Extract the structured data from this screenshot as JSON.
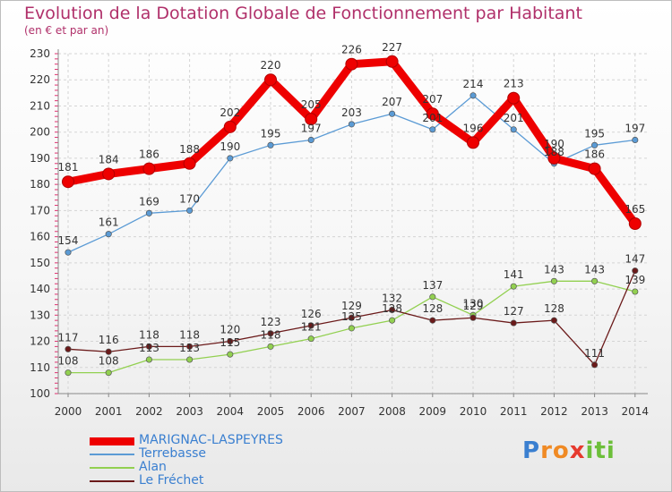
{
  "title": "Evolution de la Dotation Globale de Fonctionnement par Habitant",
  "subtitle": "(en € et par an)",
  "chart_data": {
    "type": "line",
    "title": "Evolution de la Dotation Globale de Fonctionnement par Habitant",
    "subtitle": "(en € et par an)",
    "x": [
      "2000",
      "2001",
      "2002",
      "2003",
      "2004",
      "2005",
      "2006",
      "2007",
      "2008",
      "2009",
      "2010",
      "2011",
      "2012",
      "2013",
      "2014"
    ],
    "ylim": [
      100,
      230
    ],
    "yticks": [
      "100",
      "110",
      "120",
      "130",
      "140",
      "150",
      "160",
      "170",
      "180",
      "190",
      "200",
      "210",
      "220",
      "230"
    ],
    "grid": true,
    "series": [
      {
        "name": "MARIGNAC-LASPEYRES",
        "color": "#ee0000",
        "values": [
          181,
          184,
          186,
          188,
          202,
          220,
          205,
          226,
          227,
          207,
          196,
          213,
          190,
          186,
          165
        ]
      },
      {
        "name": "Terrebasse",
        "color": "#5b9bd5",
        "values": [
          154,
          161,
          169,
          170,
          190,
          195,
          197,
          203,
          207,
          201,
          214,
          201,
          188,
          195,
          197
        ]
      },
      {
        "name": "Alan",
        "color": "#92d050",
        "values": [
          108,
          108,
          113,
          113,
          115,
          118,
          121,
          125,
          128,
          137,
          130,
          141,
          143,
          143,
          139
        ]
      },
      {
        "name": "Le Fréchet",
        "color": "#6b1a1a",
        "values": [
          117,
          116,
          118,
          118,
          120,
          123,
          126,
          129,
          132,
          128,
          129,
          127,
          128,
          111,
          147
        ]
      }
    ]
  },
  "logo": {
    "letters": [
      "P",
      "r",
      "o",
      "x",
      "i",
      "t",
      "i"
    ],
    "colors": [
      "#3a7fd0",
      "#f08a24",
      "#f08a24",
      "#e63a2e",
      "#6cbf3a",
      "#6cbf3a",
      "#6cbf3a"
    ]
  }
}
